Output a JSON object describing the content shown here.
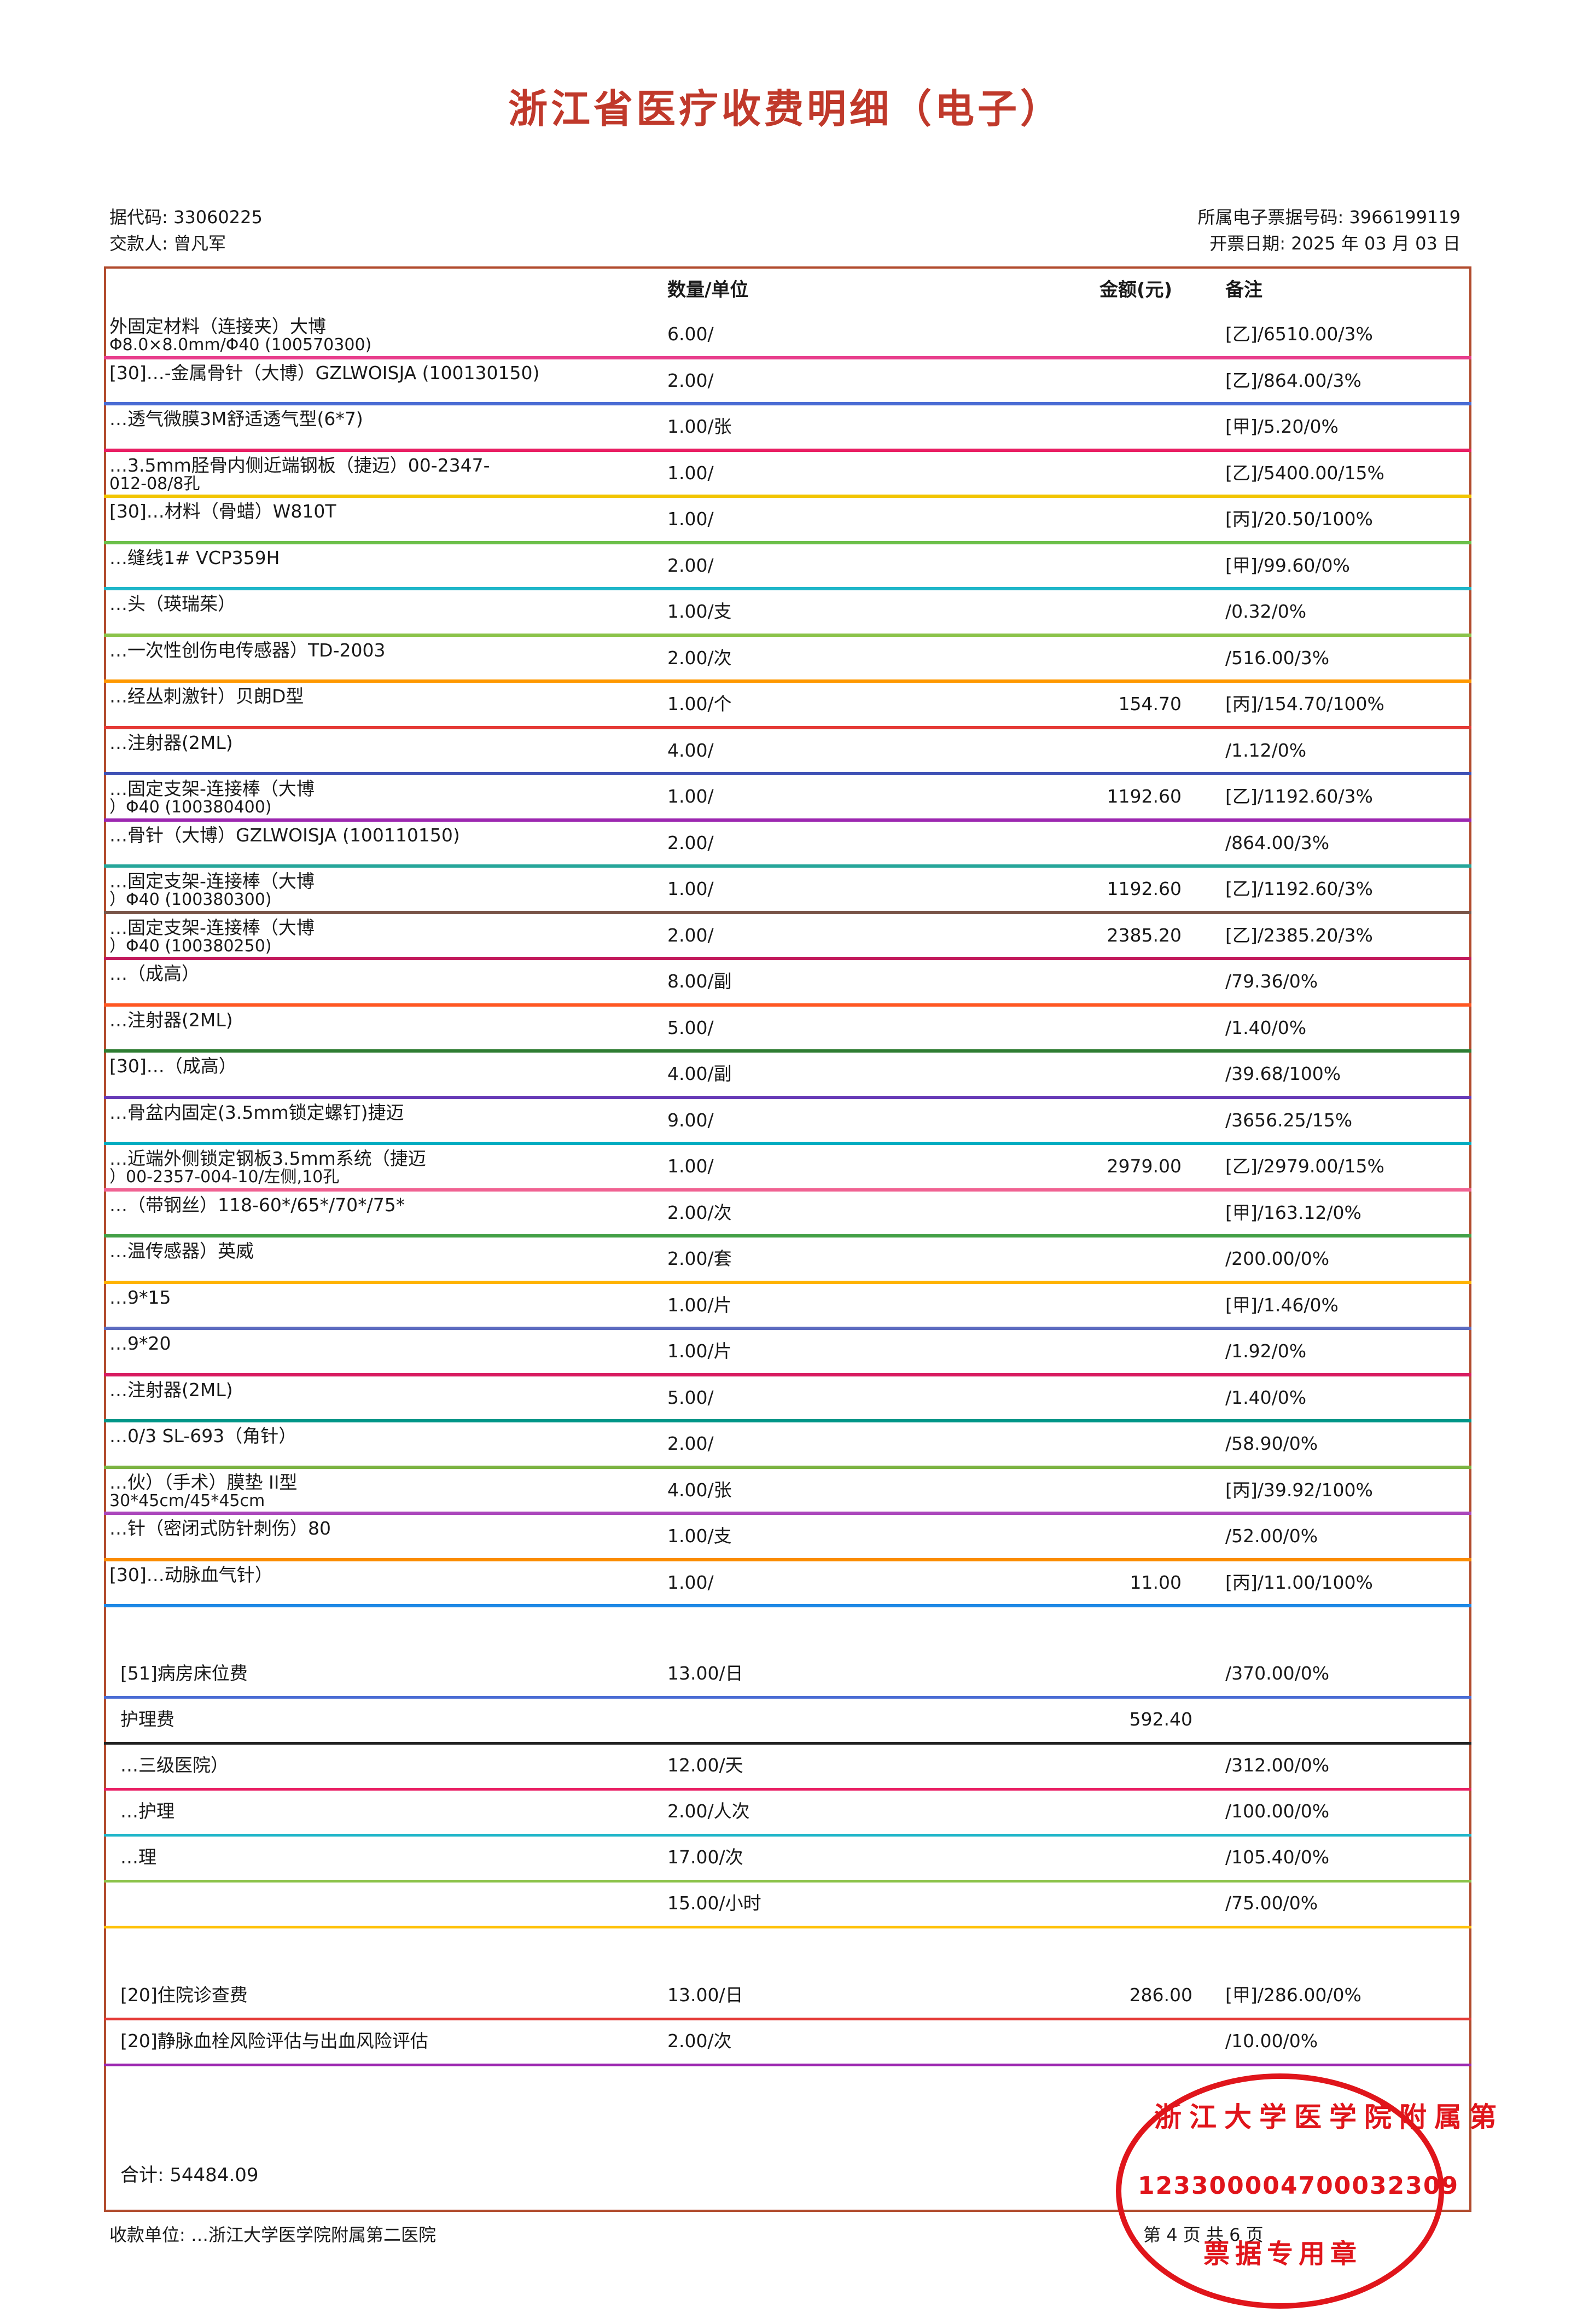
{
  "title": "浙江省医疗收费明细（电子）",
  "header": {
    "bill_code_label": "据代码:",
    "bill_code": "33060225",
    "payer_label": "交款人:",
    "payer": "曾凡军",
    "bill_no_label": "所属电子票据号码:",
    "bill_no": "3966199119",
    "date_label": "开票日期:",
    "date": "2025 年 03 月 03 日"
  },
  "columns": {
    "qty": "数量/单位",
    "amount": "金额(元)",
    "note": "备注"
  },
  "rows": [
    {
      "name": "外固定材料（连接夹）大博",
      "sub": "Φ8.0×8.0mm/Φ40 (100570300)",
      "qty": "6.00/",
      "amount": "",
      "note": "[乙]/6510.00/3%"
    },
    {
      "name": "[30]…-金属骨针（大博）GZLWOISJA (100130150)",
      "sub": "",
      "qty": "2.00/",
      "amount": "",
      "note": "[乙]/864.00/3%"
    },
    {
      "name": "…透气微膜3M舒适透气型(6*7)",
      "sub": "",
      "qty": "1.00/张",
      "amount": "",
      "note": "[甲]/5.20/0%"
    },
    {
      "name": "…3.5mm胫骨内侧近端钢板（捷迈）00-2347-",
      "sub": "012-08/8孔",
      "qty": "1.00/",
      "amount": "",
      "note": "[乙]/5400.00/15%"
    },
    {
      "name": "[30]…材料（骨蜡）W810T",
      "sub": "",
      "qty": "1.00/",
      "amount": "",
      "note": "[丙]/20.50/100%"
    },
    {
      "name": "…缝线1# VCP359H",
      "sub": "",
      "qty": "2.00/",
      "amount": "",
      "note": "[甲]/99.60/0%"
    },
    {
      "name": "…头（瑛瑞茱）",
      "sub": "",
      "qty": "1.00/支",
      "amount": "",
      "note": "/0.32/0%"
    },
    {
      "name": "…一次性创伤电传感器）TD-2003",
      "sub": "",
      "qty": "2.00/次",
      "amount": "",
      "note": "/516.00/3%"
    },
    {
      "name": "…经丛刺激针）贝朗D型",
      "sub": "",
      "qty": "1.00/个",
      "amount": "154.70",
      "note": "[丙]/154.70/100%"
    },
    {
      "name": "…注射器(2ML)",
      "sub": "",
      "qty": "4.00/",
      "amount": "",
      "note": "/1.12/0%"
    },
    {
      "name": "…固定支架-连接棒（大博",
      "sub": "）Φ40 (100380400)",
      "qty": "1.00/",
      "amount": "1192.60",
      "note": "[乙]/1192.60/3%"
    },
    {
      "name": "…骨针（大博）GZLWOISJA (100110150)",
      "sub": "",
      "qty": "2.00/",
      "amount": "",
      "note": "/864.00/3%"
    },
    {
      "name": "…固定支架-连接棒（大博",
      "sub": "）Φ40 (100380300)",
      "qty": "1.00/",
      "amount": "1192.60",
      "note": "[乙]/1192.60/3%"
    },
    {
      "name": "…固定支架-连接棒（大博",
      "sub": "）Φ40 (100380250)",
      "qty": "2.00/",
      "amount": "2385.20",
      "note": "[乙]/2385.20/3%"
    },
    {
      "name": "…（成高）",
      "sub": "",
      "qty": "8.00/副",
      "amount": "",
      "note": "/79.36/0%"
    },
    {
      "name": "…注射器(2ML)",
      "sub": "",
      "qty": "5.00/",
      "amount": "",
      "note": "/1.40/0%"
    },
    {
      "name": "[30]…（成高）",
      "sub": "",
      "qty": "4.00/副",
      "amount": "",
      "note": "/39.68/100%"
    },
    {
      "name": "…骨盆内固定(3.5mm锁定螺钉)捷迈",
      "sub": "",
      "qty": "9.00/",
      "amount": "",
      "note": "/3656.25/15%"
    },
    {
      "name": "…近端外侧锁定钢板3.5mm系统（捷迈",
      "sub": "）00-2357-004-10/左侧,10孔",
      "qty": "1.00/",
      "amount": "2979.00",
      "note": "[乙]/2979.00/15%"
    },
    {
      "name": "…（带钢丝）118-60*/65*/70*/75*",
      "sub": "",
      "qty": "2.00/次",
      "amount": "",
      "note": "[甲]/163.12/0%"
    },
    {
      "name": "…温传感器）英威",
      "sub": "",
      "qty": "2.00/套",
      "amount": "",
      "note": "/200.00/0%"
    },
    {
      "name": "…9*15",
      "sub": "",
      "qty": "1.00/片",
      "amount": "",
      "note": "[甲]/1.46/0%"
    },
    {
      "name": "…9*20",
      "sub": "",
      "qty": "1.00/片",
      "amount": "",
      "note": "/1.92/0%"
    },
    {
      "name": "…注射器(2ML)",
      "sub": "",
      "qty": "5.00/",
      "amount": "",
      "note": "/1.40/0%"
    },
    {
      "name": "…0/3 SL-693（角针）",
      "sub": "",
      "qty": "2.00/",
      "amount": "",
      "note": "/58.90/0%"
    },
    {
      "name": "…伙）（手术）膜垫 II型",
      "sub": "30*45cm/45*45cm",
      "qty": "4.00/张",
      "amount": "",
      "note": "[丙]/39.92/100%"
    },
    {
      "name": "…针（密闭式防针刺伤）80",
      "sub": "",
      "qty": "1.00/支",
      "amount": "",
      "note": "/52.00/0%"
    },
    {
      "name": "[30]…动脉血气针）",
      "sub": "",
      "qty": "1.00/",
      "amount": "11.00",
      "note": "[丙]/11.00/100%"
    }
  ],
  "section_rows": [
    {
      "name": "[51]病房床位费",
      "qty": "13.00/日",
      "amount": "",
      "note": "/370.00/0%"
    },
    {
      "name": "护理费",
      "qty": "",
      "amount": "592.40",
      "note": ""
    },
    {
      "name": "…三级医院）",
      "qty": "12.00/天",
      "amount": "",
      "note": "/312.00/0%"
    },
    {
      "name": "…护理",
      "qty": "2.00/人次",
      "amount": "",
      "note": "/100.00/0%"
    },
    {
      "name": "…理",
      "qty": "17.00/次",
      "amount": "",
      "note": "/105.40/0%"
    },
    {
      "name": "",
      "qty": "15.00/小时",
      "amount": "",
      "note": "/75.00/0%"
    },
    {
      "name": "[20]住院诊查费",
      "qty": "13.00/日",
      "amount": "286.00",
      "note": "[甲]/286.00/0%"
    },
    {
      "name": "[20]静脉血栓风险评估与出血风险评估",
      "qty": "2.00/次",
      "amount": "",
      "note": "/10.00/0%"
    }
  ],
  "total_label": "合计:",
  "total": "54484.09",
  "footer_unit_label": "收款单位:",
  "footer_unit": "…浙江大学医学院附属第二医院",
  "page_prefix": "第",
  "page_no": "4",
  "page_mid": "页 共",
  "page_total": "6",
  "page_suffix": "页",
  "stamp_top": "浙江大学医学院附属第",
  "stamp_code": "123300004700032309",
  "stamp_bottom": "票据专用章",
  "colors": {
    "title": "#c0392b",
    "stamp": "#e0151b",
    "frame": "#b14b2d"
  }
}
